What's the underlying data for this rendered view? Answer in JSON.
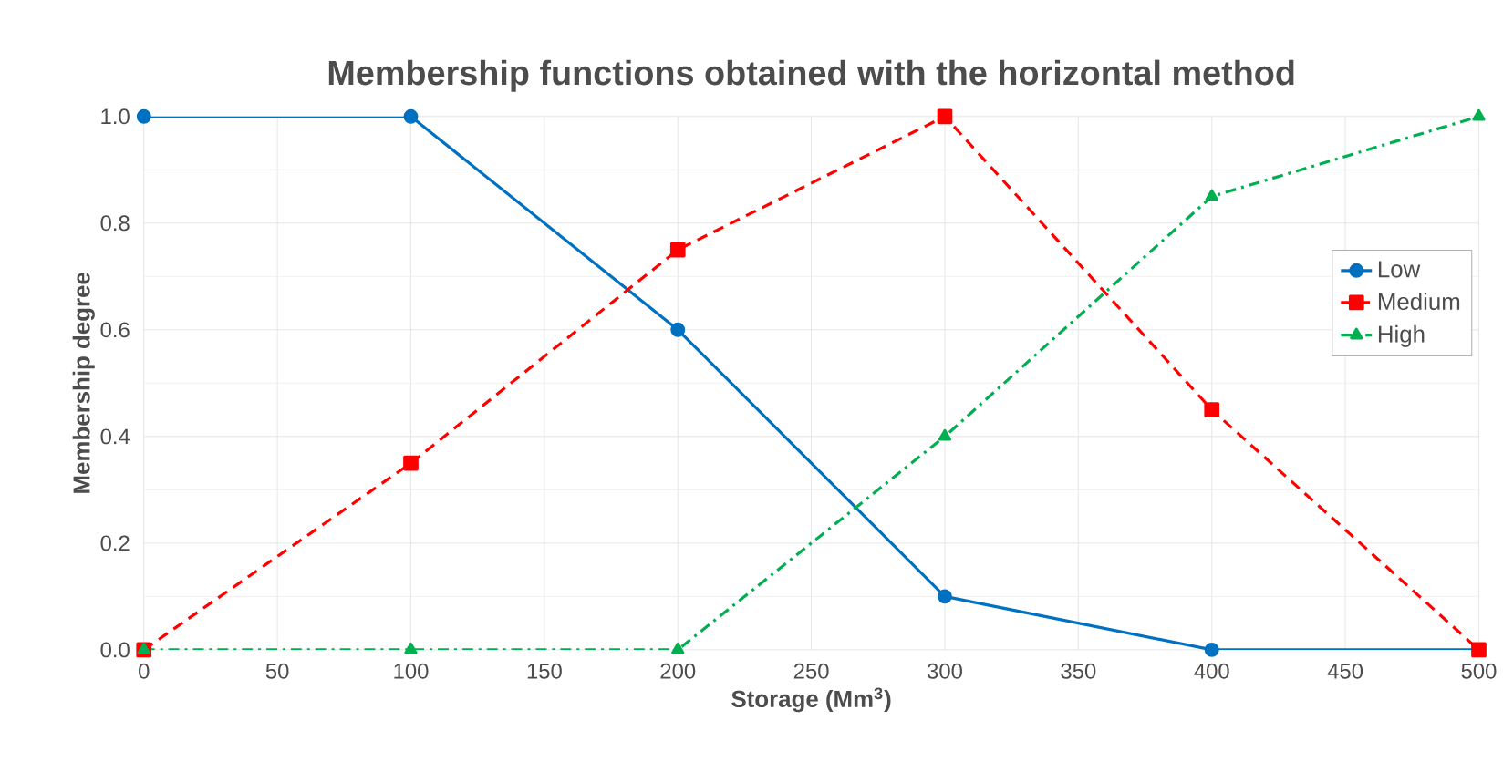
{
  "chart_data": {
    "type": "line",
    "title": "Membership functions obtained with the horizontal method",
    "xlabel": "Storage (Mm$^{3}$)",
    "ylabel": "Membership degree",
    "x": [
      0,
      100,
      200,
      300,
      400,
      500
    ],
    "series": [
      {
        "name": "Low",
        "color": "#0070c0",
        "values": [
          1,
          1,
          0.6,
          0.1,
          0,
          0
        ],
        "marker": "circle",
        "line_style": "solid"
      },
      {
        "name": "Medium",
        "color": "#ff0000",
        "values": [
          0,
          0.35,
          0.75,
          1,
          0.45,
          0
        ],
        "marker": "square",
        "line_style": "dashed"
      },
      {
        "name": "High",
        "color": "#00b050",
        "values": [
          0,
          0,
          0,
          0.4,
          0.85,
          1
        ],
        "marker": "triangle",
        "line_style": "dashdot"
      }
    ],
    "xlim": [
      0,
      500
    ],
    "xticks": [
      0,
      50,
      100,
      150,
      200,
      250,
      300,
      350,
      400,
      450,
      500
    ],
    "ylim": [
      0,
      1
    ],
    "yticks": [
      {
        "value": 0,
        "label": "0.0"
      },
      0.2,
      0.4,
      0.6,
      0.8,
      {
        "value": 1,
        "label": "1.0"
      }
    ],
    "grid": true,
    "legend": "right"
  }
}
